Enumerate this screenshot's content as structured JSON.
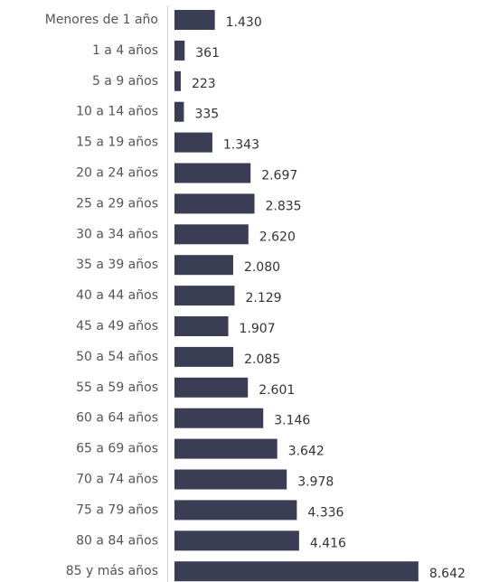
{
  "chart_data": {
    "type": "barh",
    "categories": [
      "Menores de 1 año",
      "1 a 4 años",
      "5 a 9 años",
      "10 a 14 años",
      "15 a 19 años",
      "20 a 24 años",
      "25 a 29 años",
      "30 a 34 años",
      "35 a 39 años",
      "40 a 44 años",
      "45 a 49 años",
      "50 a 54 años",
      "55 a 59 años",
      "60 a 64 años",
      "65 a 69 años",
      "70 a 74 años",
      "75 a 79 años",
      "80 a 84 años",
      "85 y más años"
    ],
    "values": [
      1430,
      361,
      223,
      335,
      1343,
      2697,
      2835,
      2620,
      2080,
      2129,
      1907,
      2085,
      2601,
      3146,
      3642,
      3978,
      4336,
      4416,
      8642
    ],
    "value_labels": [
      "1.430",
      "361",
      "223",
      "335",
      "1.343",
      "2.697",
      "2.835",
      "2.620",
      "2.080",
      "2.129",
      "1.907",
      "2.085",
      "2.601",
      "3.146",
      "3.642",
      "3.978",
      "4.336",
      "4.416",
      "8.642"
    ],
    "color": "#3b3d54",
    "xlim": [
      0,
      9000
    ]
  }
}
